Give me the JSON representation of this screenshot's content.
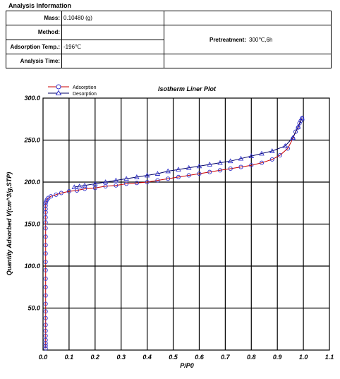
{
  "header": {
    "title": "Analysis Information"
  },
  "info": {
    "mass_label": "Mass:",
    "mass_value": "0.10480 (g)",
    "method_label": "Method:",
    "method_value": "",
    "adsorption_temp_label": "Adsorption Temp.:",
    "adsorption_temp_value": "-196℃",
    "analysis_time_label": "Analysis Time:",
    "analysis_time_value": "",
    "pretreatment_label": "Pretreatment:",
    "pretreatment_value": "300℃,6h"
  },
  "chart_data": {
    "type": "line",
    "title": "Isotherm Liner Plot",
    "xlabel": "P/P0",
    "ylabel": "Quantity Adsorbed V(cm^3/g,STP)",
    "xlim": [
      0.0,
      1.1
    ],
    "ylim": [
      0.0,
      300.0
    ],
    "xticks": [
      "0.0",
      "0.1",
      "0.2",
      "0.3",
      "0.4",
      "0.5",
      "0.6",
      "0.7",
      "0.8",
      "0.9",
      "1.0",
      "1.1"
    ],
    "yticks": [
      "50.0",
      "100.0",
      "150.0",
      "200.0",
      "250.0",
      "300.0"
    ],
    "grid": true,
    "legend_position": "top-left",
    "series": [
      {
        "name": "Adsorption",
        "color": "#cc0000",
        "marker": "circle",
        "marker_color": "#3333cc",
        "x": [
          0.01,
          0.01,
          0.01,
          0.01,
          0.01,
          0.01,
          0.01,
          0.01,
          0.01,
          0.01,
          0.01,
          0.01,
          0.01,
          0.01,
          0.01,
          0.01,
          0.01,
          0.01,
          0.01,
          0.01,
          0.01,
          0.01,
          0.01,
          0.01,
          0.01,
          0.012,
          0.015,
          0.02,
          0.03,
          0.05,
          0.07,
          0.1,
          0.13,
          0.16,
          0.2,
          0.24,
          0.28,
          0.32,
          0.36,
          0.4,
          0.44,
          0.48,
          0.52,
          0.56,
          0.6,
          0.64,
          0.68,
          0.72,
          0.76,
          0.8,
          0.84,
          0.88,
          0.91,
          0.94,
          0.96,
          0.97,
          0.98,
          0.985,
          0.99,
          0.995
        ],
        "y": [
          2,
          5,
          8,
          12,
          17,
          23,
          30,
          38,
          46,
          55,
          65,
          75,
          85,
          95,
          105,
          115,
          125,
          135,
          145,
          152,
          158,
          164,
          168,
          172,
          175,
          177,
          179,
          181,
          183,
          185,
          187,
          189,
          190,
          192,
          193,
          195,
          196,
          198,
          199,
          200,
          202,
          204,
          206,
          208,
          210,
          212,
          214,
          216,
          218,
          220,
          223,
          227,
          232,
          240,
          252,
          260,
          265,
          270,
          273,
          276
        ]
      },
      {
        "name": "Desorption",
        "color": "#000066",
        "marker": "triangle",
        "marker_color": "#3333cc",
        "x": [
          0.995,
          0.98,
          0.96,
          0.93,
          0.88,
          0.84,
          0.8,
          0.76,
          0.72,
          0.68,
          0.64,
          0.6,
          0.56,
          0.52,
          0.48,
          0.44,
          0.4,
          0.36,
          0.32,
          0.28,
          0.24,
          0.2,
          0.16,
          0.14,
          0.12
        ],
        "y": [
          276,
          266,
          253,
          243,
          237,
          234,
          231,
          228,
          225,
          223,
          221,
          219,
          217,
          215,
          213,
          210,
          208,
          206,
          204,
          202,
          200,
          198,
          196,
          195,
          194
        ]
      }
    ]
  }
}
